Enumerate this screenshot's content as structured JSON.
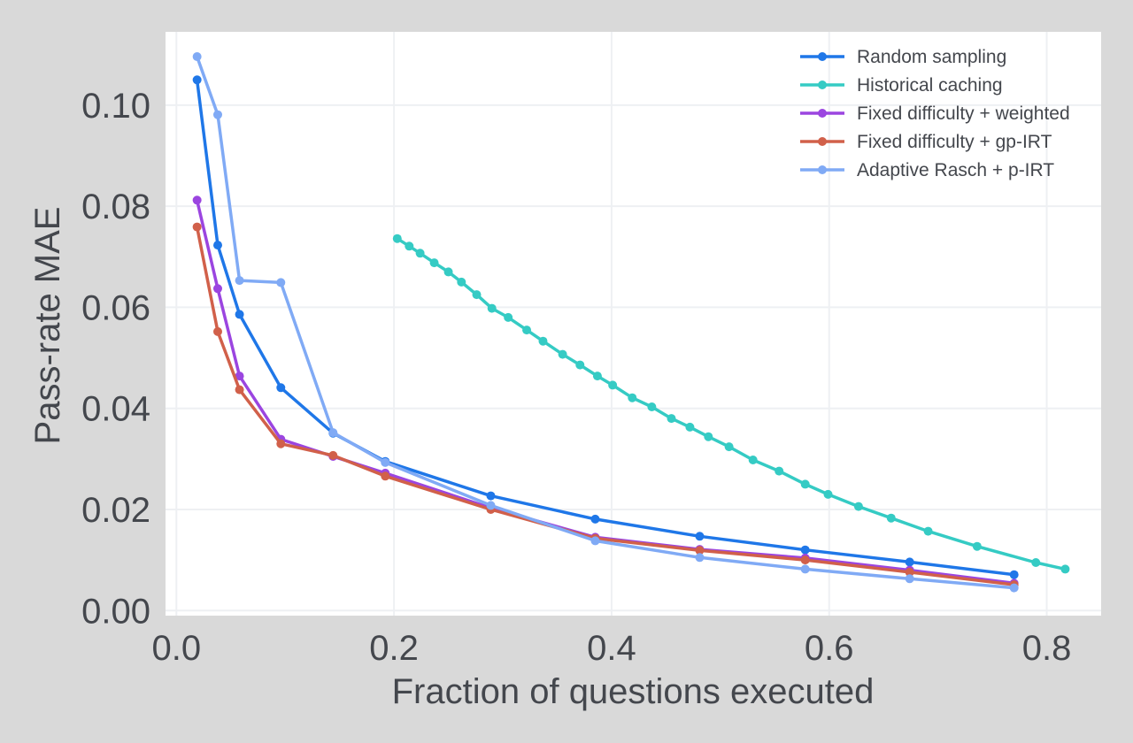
{
  "chart_data": {
    "type": "line",
    "title": "",
    "xlabel": "Fraction of questions executed",
    "ylabel": "Pass-rate MAE",
    "xlim": [
      -0.01,
      0.85
    ],
    "ylim": [
      -0.001,
      0.1145
    ],
    "xticks": [
      0.0,
      0.2,
      0.4,
      0.6,
      0.8
    ],
    "xtick_labels": [
      "0.0",
      "0.2",
      "0.4",
      "0.6",
      "0.8"
    ],
    "yticks": [
      0.0,
      0.02,
      0.04,
      0.06,
      0.08,
      0.1
    ],
    "ytick_labels": [
      "0.00",
      "0.02",
      "0.04",
      "0.06",
      "0.08",
      "0.10"
    ],
    "grid": true,
    "legend_position": "top-right",
    "series": [
      {
        "name": "Random sampling",
        "color": "#1f77e8",
        "x": [
          0.019,
          0.038,
          0.058,
          0.096,
          0.144,
          0.192,
          0.289,
          0.385,
          0.481,
          0.578,
          0.674,
          0.77
        ],
        "y": [
          0.105,
          0.0723,
          0.0586,
          0.0441,
          0.0351,
          0.0295,
          0.0227,
          0.0181,
          0.0147,
          0.012,
          0.0096,
          0.0071
        ]
      },
      {
        "name": "Historical caching",
        "color": "#35cbc4",
        "x": [
          0.203,
          0.214,
          0.224,
          0.237,
          0.25,
          0.262,
          0.276,
          0.29,
          0.305,
          0.322,
          0.337,
          0.355,
          0.371,
          0.387,
          0.401,
          0.419,
          0.437,
          0.455,
          0.472,
          0.489,
          0.508,
          0.53,
          0.554,
          0.578,
          0.599,
          0.627,
          0.657,
          0.691,
          0.736,
          0.79,
          0.817
        ],
        "y": [
          0.0736,
          0.0721,
          0.0707,
          0.0688,
          0.067,
          0.065,
          0.0625,
          0.0598,
          0.058,
          0.0555,
          0.0533,
          0.0507,
          0.0486,
          0.0464,
          0.0446,
          0.0421,
          0.0403,
          0.038,
          0.0363,
          0.0344,
          0.0324,
          0.0298,
          0.0276,
          0.025,
          0.023,
          0.0206,
          0.0183,
          0.0157,
          0.0127,
          0.0095,
          0.0082
        ]
      },
      {
        "name": "Fixed difficulty + weighted",
        "color": "#9b45e0",
        "x": [
          0.019,
          0.038,
          0.058,
          0.096,
          0.144,
          0.192,
          0.289,
          0.385,
          0.481,
          0.578,
          0.674,
          0.77
        ],
        "y": [
          0.0812,
          0.0637,
          0.0464,
          0.0339,
          0.0305,
          0.0272,
          0.0203,
          0.0145,
          0.0121,
          0.0104,
          0.008,
          0.0054
        ]
      },
      {
        "name": "Fixed difficulty + gp-IRT",
        "color": "#d1604a",
        "x": [
          0.019,
          0.038,
          0.058,
          0.096,
          0.144,
          0.192,
          0.289,
          0.385,
          0.481,
          0.578,
          0.674,
          0.77
        ],
        "y": [
          0.0759,
          0.0552,
          0.0437,
          0.033,
          0.0307,
          0.0266,
          0.02,
          0.0143,
          0.0119,
          0.01,
          0.0076,
          0.0051
        ]
      },
      {
        "name": "Adaptive Rasch + p-IRT",
        "color": "#80aaf5",
        "x": [
          0.019,
          0.038,
          0.058,
          0.096,
          0.144,
          0.192,
          0.289,
          0.385,
          0.481,
          0.578,
          0.674,
          0.77
        ],
        "y": [
          0.1096,
          0.0981,
          0.0653,
          0.0649,
          0.0352,
          0.0293,
          0.0208,
          0.0138,
          0.0105,
          0.0082,
          0.0063,
          0.0045
        ]
      }
    ]
  }
}
